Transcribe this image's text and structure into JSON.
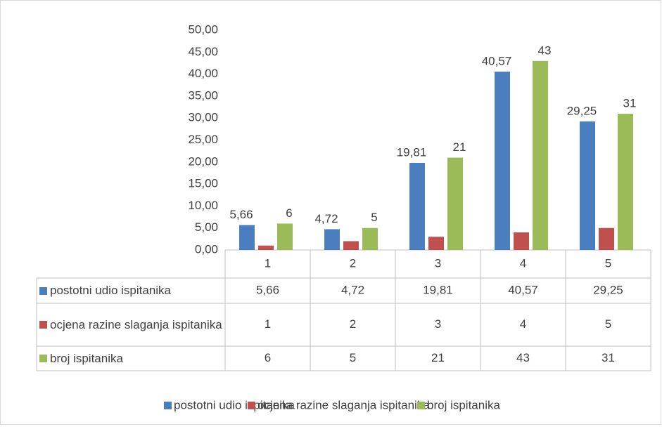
{
  "chart_data": {
    "type": "bar",
    "categories": [
      "1",
      "2",
      "3",
      "4",
      "5"
    ],
    "series": [
      {
        "name": "postotni udio ispitanika",
        "color": "#4a7ebf",
        "values": [
          5.66,
          4.72,
          19.81,
          40.57,
          29.25
        ],
        "value_labels": [
          "5,66",
          "4,72",
          "19,81",
          "40,57",
          "29,25"
        ]
      },
      {
        "name": "ocjena razine slaganja ispitanika",
        "color": "#c0504d",
        "values": [
          1,
          2,
          3,
          4,
          5
        ]
      },
      {
        "name": "broj ispitanika",
        "color": "#9bbb59",
        "values": [
          6,
          5,
          21,
          43,
          31
        ]
      }
    ],
    "ylim": [
      0,
      50
    ],
    "yticks": [
      {
        "value": 0,
        "label": "0,00"
      },
      {
        "value": 5,
        "label": "5,00"
      },
      {
        "value": 10,
        "label": "10,00"
      },
      {
        "value": 15,
        "label": "15,00"
      },
      {
        "value": 20,
        "label": "20,00"
      },
      {
        "value": 25,
        "label": "25,00"
      },
      {
        "value": 30,
        "label": "30,00"
      },
      {
        "value": 35,
        "label": "35,00"
      },
      {
        "value": 40,
        "label": "40,00"
      },
      {
        "value": 45,
        "label": "45,00"
      },
      {
        "value": 50,
        "label": "50,00"
      }
    ],
    "legend": "bottom"
  }
}
